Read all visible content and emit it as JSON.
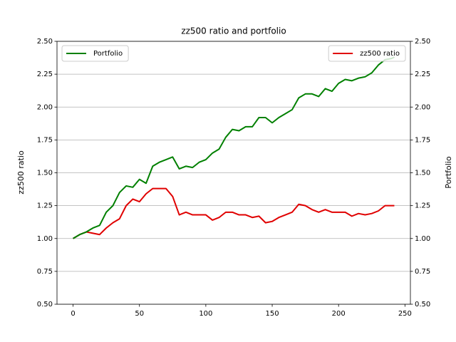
{
  "chart_data": {
    "type": "line",
    "title": "zz500 ratio and portfolio",
    "y_label": "zz500 ratio",
    "y2_label": "Portfolio",
    "x": [
      0,
      5,
      10,
      15,
      20,
      25,
      30,
      35,
      40,
      45,
      50,
      55,
      60,
      65,
      70,
      75,
      80,
      85,
      90,
      95,
      100,
      105,
      110,
      115,
      120,
      125,
      130,
      135,
      140,
      145,
      150,
      155,
      160,
      165,
      170,
      175,
      180,
      185,
      190,
      195,
      200,
      205,
      210,
      215,
      220,
      225,
      230,
      235,
      240,
      242
    ],
    "series": [
      {
        "name": "zz500 ratio",
        "color": "#e00000",
        "axis": "y",
        "legend_loc": "upper right",
        "values": [
          1.0,
          1.03,
          1.05,
          1.04,
          1.03,
          1.08,
          1.12,
          1.15,
          1.25,
          1.3,
          1.28,
          1.34,
          1.38,
          1.38,
          1.38,
          1.32,
          1.18,
          1.2,
          1.18,
          1.18,
          1.18,
          1.14,
          1.16,
          1.2,
          1.2,
          1.18,
          1.18,
          1.16,
          1.17,
          1.12,
          1.13,
          1.16,
          1.18,
          1.2,
          1.26,
          1.25,
          1.22,
          1.2,
          1.22,
          1.2,
          1.2,
          1.2,
          1.17,
          1.19,
          1.18,
          1.19,
          1.21,
          1.25,
          1.25,
          1.25
        ]
      },
      {
        "name": "Portfolio",
        "color": "#008000",
        "axis": "y2",
        "legend_loc": "upper left",
        "values": [
          1.0,
          1.03,
          1.05,
          1.08,
          1.1,
          1.2,
          1.25,
          1.35,
          1.4,
          1.39,
          1.45,
          1.42,
          1.55,
          1.58,
          1.6,
          1.62,
          1.53,
          1.55,
          1.54,
          1.58,
          1.6,
          1.65,
          1.68,
          1.77,
          1.83,
          1.82,
          1.85,
          1.85,
          1.92,
          1.92,
          1.88,
          1.92,
          1.95,
          1.98,
          2.07,
          2.1,
          2.1,
          2.08,
          2.14,
          2.12,
          2.18,
          2.21,
          2.2,
          2.22,
          2.23,
          2.26,
          2.32,
          2.36,
          2.37,
          2.38
        ]
      }
    ],
    "xlim": [
      -12.1,
      254.1
    ],
    "xticks": [
      0,
      50,
      100,
      150,
      200,
      250
    ],
    "ylim": [
      0.5,
      2.5
    ],
    "yticks": [
      {
        "value": 0.5,
        "label": "0.50"
      },
      0.75,
      {
        "value": 1,
        "label": "1.00"
      },
      1.25,
      {
        "value": 1.5,
        "label": "1.50"
      },
      1.75,
      {
        "value": 2,
        "label": "2.00"
      },
      2.25,
      {
        "value": 2.5,
        "label": "2.50"
      }
    ],
    "y2lim": [
      0.5,
      2.5
    ],
    "y2ticks": [
      {
        "value": 0.5,
        "label": "0.50"
      },
      0.75,
      {
        "value": 1,
        "label": "1.00"
      },
      1.25,
      {
        "value": 1.5,
        "label": "1.50"
      },
      1.75,
      {
        "value": 2,
        "label": "2.00"
      },
      2.25,
      {
        "value": 2.5,
        "label": "2.50"
      }
    ],
    "grid": true
  }
}
